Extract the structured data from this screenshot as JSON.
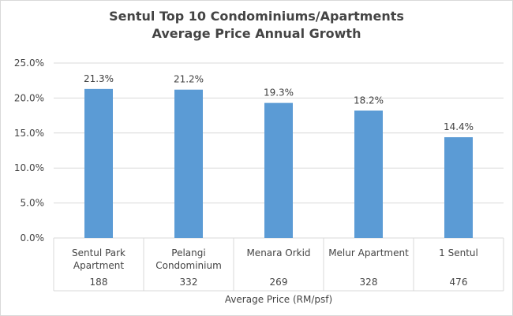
{
  "chart_data": {
    "type": "bar",
    "title_lines": [
      "Sentul Top 10 Condominiums/Apartments",
      "Average Price Annual Growth"
    ],
    "categories": [
      {
        "name_lines": [
          "Sentul Park",
          "Apartment"
        ],
        "avg_price": "188"
      },
      {
        "name_lines": [
          "Pelangi",
          "Condominium"
        ],
        "avg_price": "332"
      },
      {
        "name_lines": [
          "Menara Orkid"
        ],
        "avg_price": "269"
      },
      {
        "name_lines": [
          "Melur Apartment"
        ],
        "avg_price": "328"
      },
      {
        "name_lines": [
          "1 Sentul"
        ],
        "avg_price": "476"
      }
    ],
    "values": [
      21.3,
      21.2,
      19.3,
      18.2,
      14.4
    ],
    "data_labels": [
      "21.3%",
      "21.2%",
      "19.3%",
      "18.2%",
      "14.4%"
    ],
    "ylim": [
      0,
      25
    ],
    "yticks": [
      0,
      5,
      10,
      15,
      20,
      25
    ],
    "ytick_labels": [
      "0.0%",
      "5.0%",
      "10.0%",
      "15.0%",
      "20.0%",
      "25.0%"
    ],
    "xlabel": "Average Price (RM/psf)",
    "grid": true,
    "colors": {
      "bar": "#5b9bd5",
      "grid": "#d9d9d9",
      "text": "#444444"
    }
  }
}
